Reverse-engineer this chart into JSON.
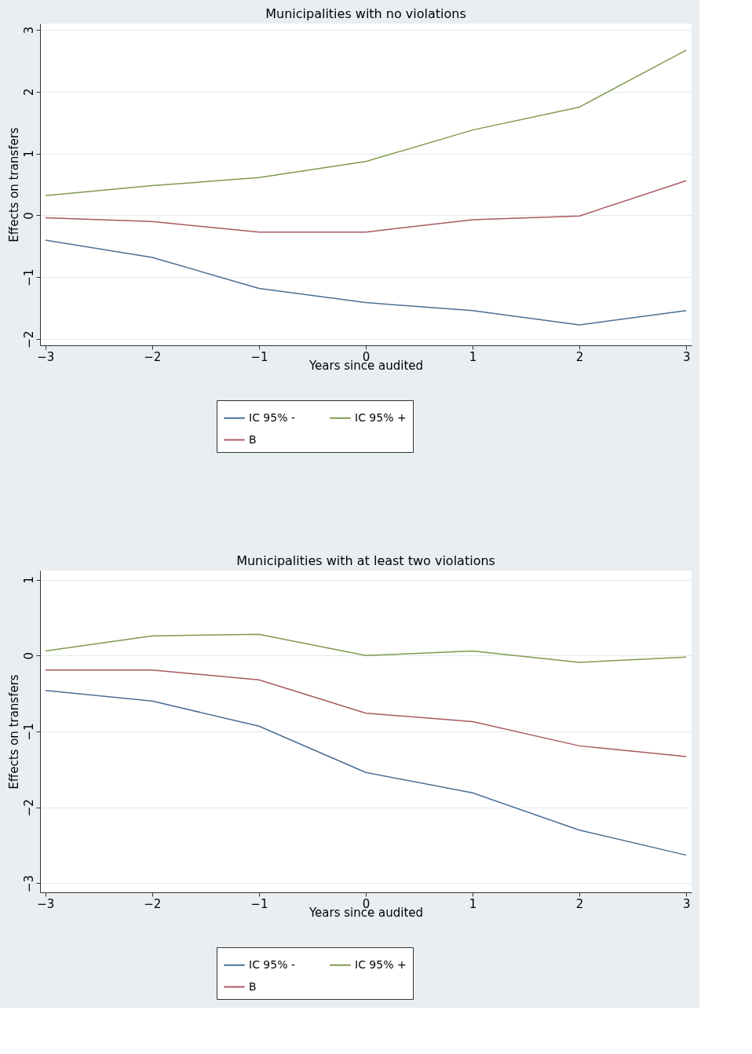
{
  "chart_data": [
    {
      "type": "line",
      "title": "Municipalities with no violations",
      "xlabel": "Years since audited",
      "ylabel": "Effects on transfers",
      "x": [
        -3,
        -2,
        -1,
        0,
        1,
        2,
        3
      ],
      "series": [
        {
          "name": "IC 95% -",
          "color": "#4a6f94",
          "values": [
            -0.4,
            -0.68,
            -1.18,
            -1.41,
            -1.54,
            -1.77,
            -1.54
          ]
        },
        {
          "name": "B",
          "color": "#a85a5e",
          "values": [
            -0.04,
            -0.1,
            -0.27,
            -0.27,
            -0.07,
            -0.01,
            0.56
          ]
        },
        {
          "name": "IC 95% +",
          "color": "#7f9a4f",
          "values": [
            0.32,
            0.48,
            0.61,
            0.87,
            1.38,
            1.75,
            2.67
          ]
        }
      ],
      "xlim": [
        -3.05,
        3.05
      ],
      "ylim": [
        -2.1,
        3.1
      ],
      "xticks": [
        -3,
        -2,
        -1,
        0,
        1,
        2,
        3
      ],
      "yticks": [
        -2,
        -1,
        0,
        1,
        2,
        3
      ],
      "grid": "y",
      "legend": "bottom",
      "marker": "none",
      "line_style": "solid"
    },
    {
      "type": "line",
      "title": "Municipalities with at least two violations",
      "xlabel": "Years since audited",
      "ylabel": "Effects on transfers",
      "x": [
        -3,
        -2,
        -1,
        0,
        1,
        2,
        3
      ],
      "series": [
        {
          "name": "IC 95% -",
          "color": "#4a6f94",
          "values": [
            -0.46,
            -0.6,
            -0.93,
            -1.54,
            -1.81,
            -2.3,
            -2.63
          ]
        },
        {
          "name": "B",
          "color": "#a85a5e",
          "values": [
            -0.19,
            -0.19,
            -0.32,
            -0.76,
            -0.87,
            -1.19,
            -1.33
          ]
        },
        {
          "name": "IC 95% +",
          "color": "#7f9a4f",
          "values": [
            0.06,
            0.26,
            0.28,
            0.0,
            0.06,
            -0.09,
            -0.02
          ]
        }
      ],
      "xlim": [
        -3.05,
        3.05
      ],
      "ylim": [
        -3.12,
        1.12
      ],
      "xticks": [
        -3,
        -2,
        -1,
        0,
        1,
        2,
        3
      ],
      "yticks": [
        -3,
        -2,
        -1,
        0,
        1
      ],
      "grid": "y",
      "legend": "bottom",
      "marker": "none",
      "line_style": "solid"
    }
  ]
}
